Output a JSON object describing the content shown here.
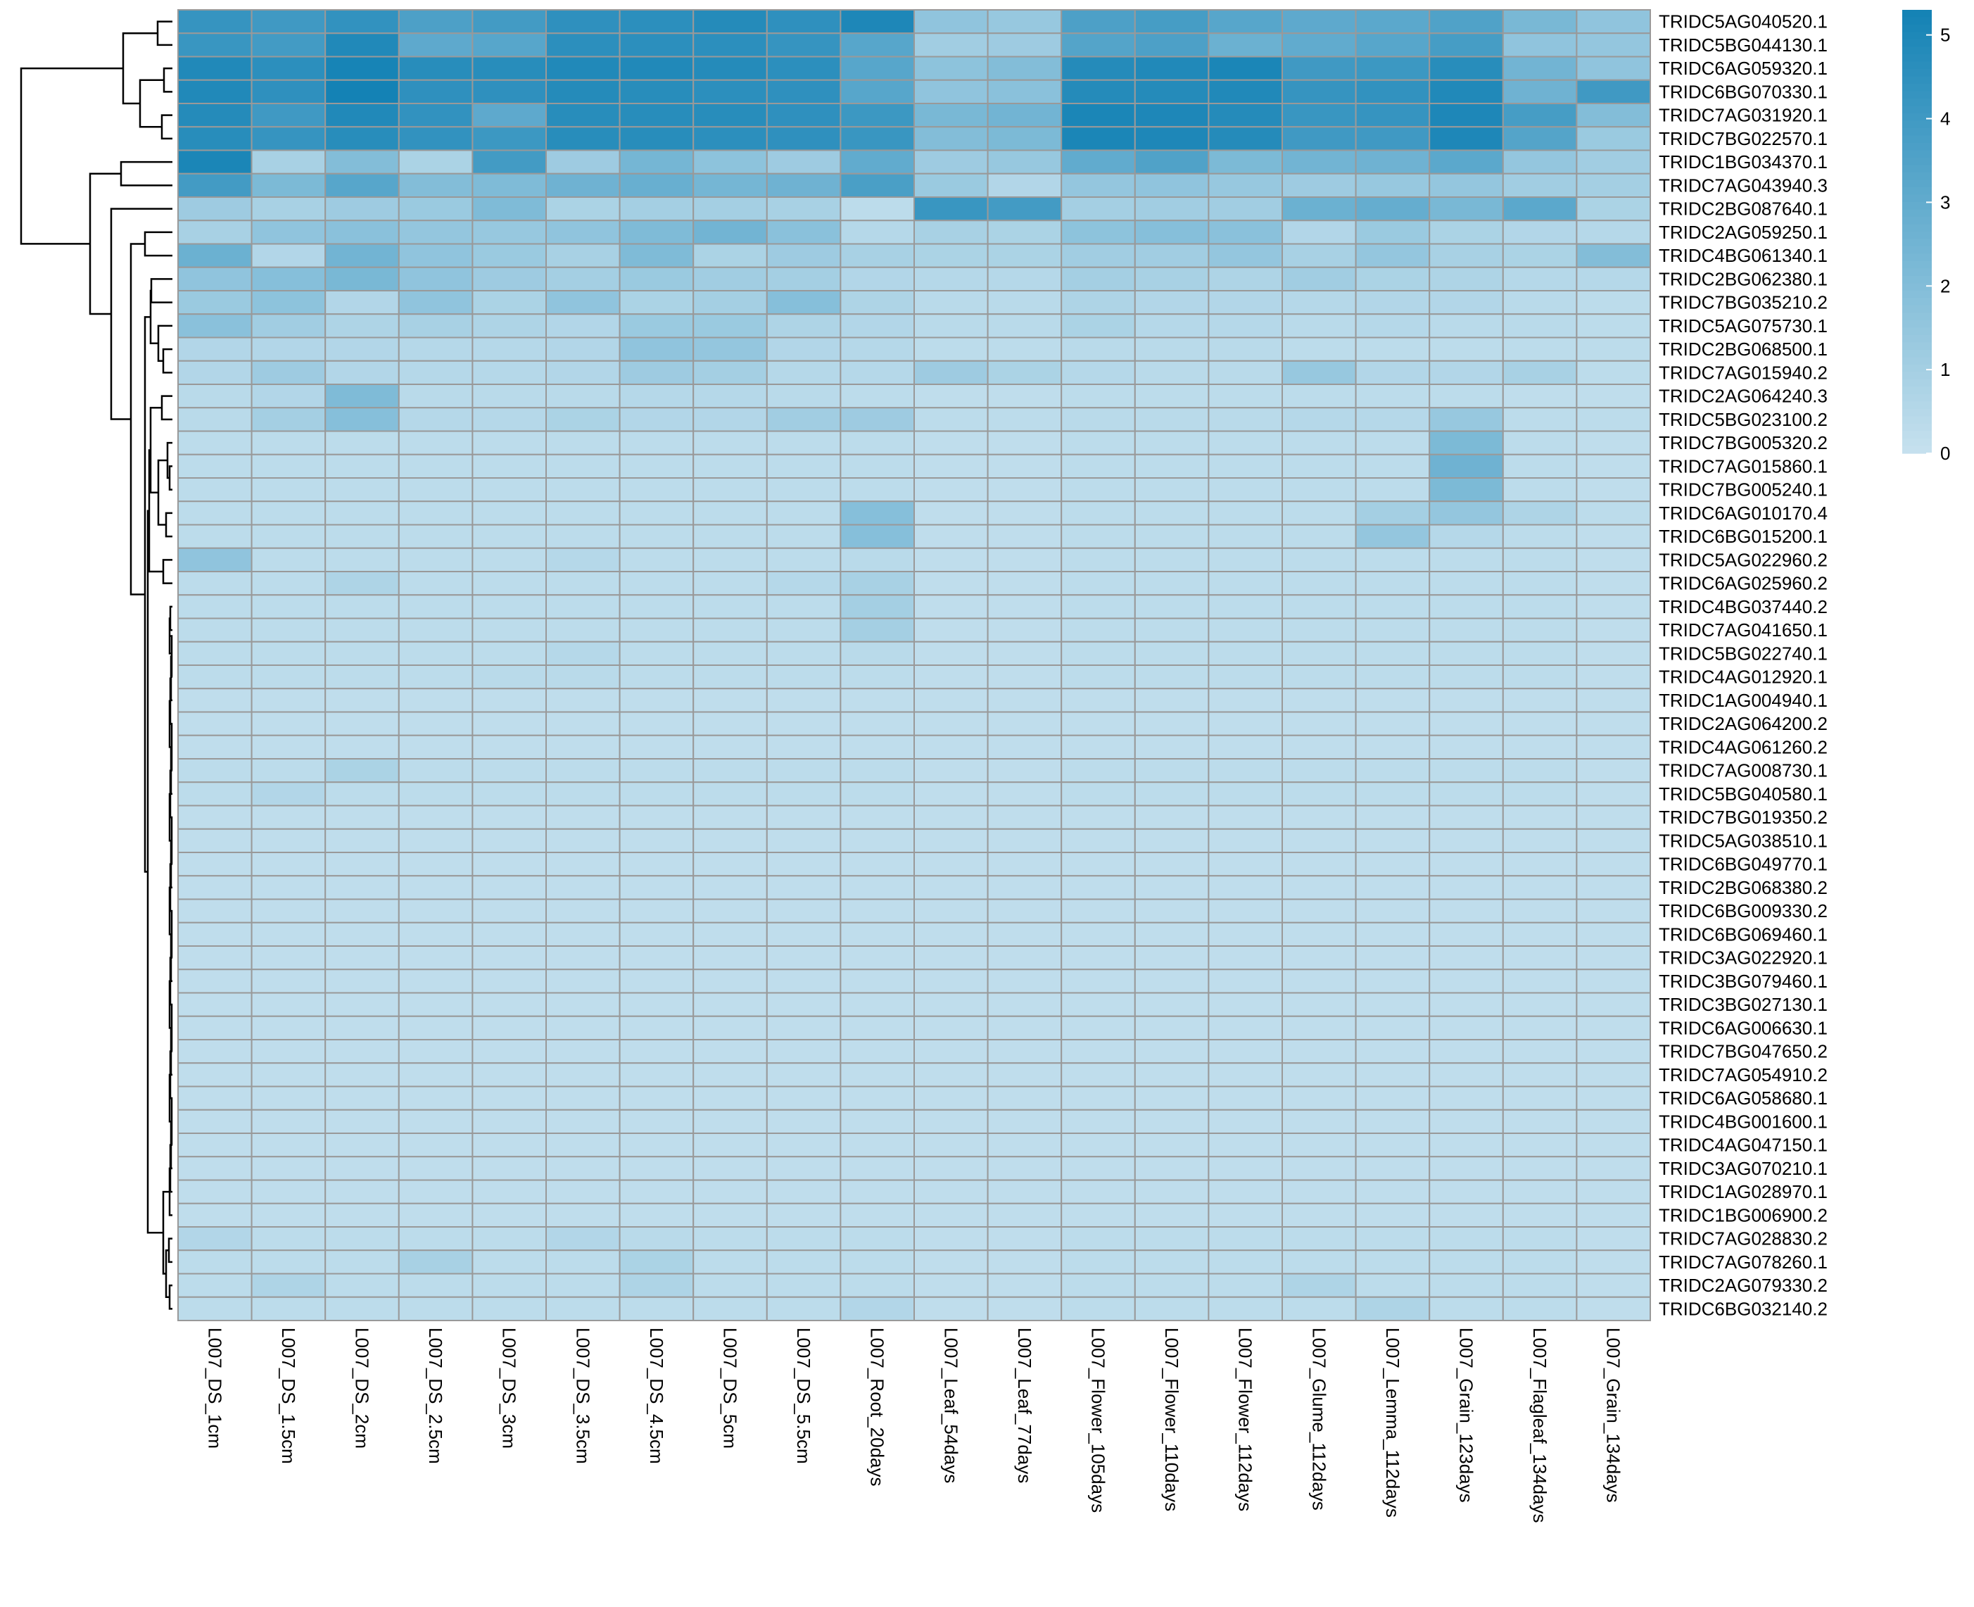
{
  "chart_data": {
    "type": "heatmap",
    "title": "",
    "columns": [
      "L007_DS_1cm",
      "L007_DS_1.5cm",
      "L007_DS_2cm",
      "L007_DS_2.5cm",
      "L007_DS_3cm",
      "L007_DS_3.5cm",
      "L007_DS_4.5cm",
      "L007_DS_5cm",
      "L007_DS_5.5cm",
      "L007_Root_20days",
      "L007_Leaf_54days",
      "L007_Leaf_77days",
      "L007_Flower_105days",
      "L007_Flower_110days",
      "L007_Flower_112days",
      "L007_Glume_112days",
      "L007_Lemma_112days",
      "L007_Grain_123days",
      "L007_Flagleaf_134days",
      "L007_Grain_134days"
    ],
    "rows": [
      "TRIDC5AG040520.1",
      "TRIDC5BG044130.1",
      "TRIDC6AG059320.1",
      "TRIDC6BG070330.1",
      "TRIDC7AG031920.1",
      "TRIDC7BG022570.1",
      "TRIDC1BG034370.1",
      "TRIDC7AG043940.3",
      "TRIDC2BG087640.1",
      "TRIDC2AG059250.1",
      "TRIDC4BG061340.1",
      "TRIDC2BG062380.1",
      "TRIDC7BG035210.2",
      "TRIDC5AG075730.1",
      "TRIDC2BG068500.1",
      "TRIDC7AG015940.2",
      "TRIDC2AG064240.3",
      "TRIDC5BG023100.2",
      "TRIDC7BG005320.2",
      "TRIDC7AG015860.1",
      "TRIDC7BG005240.1",
      "TRIDC6AG010170.4",
      "TRIDC6BG015200.1",
      "TRIDC5AG022960.2",
      "TRIDC6AG025960.2",
      "TRIDC4BG037440.2",
      "TRIDC7AG041650.1",
      "TRIDC5BG022740.1",
      "TRIDC4AG012920.1",
      "TRIDC1AG004940.1",
      "TRIDC2AG064200.2",
      "TRIDC4AG061260.2",
      "TRIDC7AG008730.1",
      "TRIDC5BG040580.1",
      "TRIDC7BG019350.2",
      "TRIDC5AG038510.1",
      "TRIDC6BG049770.1",
      "TRIDC2BG068380.2",
      "TRIDC6BG009330.2",
      "TRIDC6BG069460.1",
      "TRIDC3AG022920.1",
      "TRIDC3BG079460.1",
      "TRIDC3BG027130.1",
      "TRIDC6AG006630.1",
      "TRIDC7BG047650.2",
      "TRIDC7AG054910.2",
      "TRIDC6AG058680.1",
      "TRIDC4BG001600.1",
      "TRIDC4AG047150.1",
      "TRIDC3AG070210.1",
      "TRIDC1AG028970.1",
      "TRIDC1BG006900.2",
      "TRIDC7AG028830.2",
      "TRIDC7AG078260.1",
      "TRIDC2AG079330.2",
      "TRIDC6BG032140.2"
    ],
    "values": [
      [
        4.3,
        4.0,
        4.4,
        3.6,
        3.9,
        4.5,
        4.6,
        4.8,
        4.5,
        5.0,
        1.6,
        1.4,
        3.6,
        3.8,
        3.3,
        3.1,
        3.2,
        3.5,
        2.3,
        1.6
      ],
      [
        4.2,
        3.9,
        4.9,
        3.1,
        3.3,
        4.6,
        4.6,
        4.6,
        4.3,
        3.3,
        1.1,
        1.2,
        3.4,
        3.6,
        2.7,
        3.0,
        3.3,
        3.8,
        1.6,
        1.5
      ],
      [
        4.9,
        4.6,
        5.2,
        4.7,
        4.7,
        4.9,
        4.9,
        4.8,
        4.6,
        3.3,
        1.7,
        2.0,
        4.8,
        4.9,
        5.1,
        4.0,
        4.1,
        4.7,
        2.5,
        1.6
      ],
      [
        4.9,
        4.5,
        5.3,
        4.5,
        4.5,
        4.8,
        4.7,
        4.6,
        4.5,
        3.3,
        1.6,
        1.8,
        4.8,
        4.8,
        4.9,
        4.3,
        4.4,
        4.9,
        2.6,
        4.0
      ],
      [
        4.8,
        4.0,
        4.9,
        4.4,
        3.1,
        4.7,
        4.7,
        4.7,
        4.5,
        4.1,
        2.3,
        2.5,
        5.1,
        5.0,
        4.8,
        4.2,
        4.3,
        5.0,
        3.8,
        2.0
      ],
      [
        4.7,
        4.3,
        4.7,
        4.4,
        4.1,
        4.7,
        4.7,
        4.6,
        4.5,
        4.2,
        2.0,
        2.2,
        5.1,
        5.0,
        4.8,
        4.0,
        4.0,
        5.0,
        3.4,
        1.3
      ],
      [
        5.1,
        0.9,
        2.0,
        0.8,
        3.9,
        1.2,
        2.4,
        1.7,
        1.2,
        3.0,
        1.2,
        1.4,
        3.0,
        3.5,
        2.2,
        2.5,
        2.6,
        3.2,
        1.5,
        1.1
      ],
      [
        3.9,
        2.2,
        3.3,
        2.0,
        2.1,
        2.6,
        2.8,
        2.4,
        2.6,
        3.7,
        1.3,
        0.6,
        1.5,
        1.6,
        1.4,
        1.2,
        1.4,
        1.5,
        1.1,
        1.0
      ],
      [
        1.2,
        0.9,
        1.2,
        1.3,
        2.1,
        0.8,
        1.0,
        1.0,
        0.9,
        0.3,
        4.2,
        3.9,
        1.0,
        1.1,
        1.1,
        2.7,
        2.9,
        2.3,
        3.2,
        0.8
      ],
      [
        0.9,
        1.6,
        1.8,
        1.5,
        1.4,
        1.6,
        2.1,
        2.5,
        1.8,
        0.5,
        0.9,
        0.8,
        1.7,
        1.9,
        1.8,
        0.6,
        1.3,
        0.8,
        0.6,
        0.5
      ],
      [
        2.7,
        0.6,
        2.5,
        1.6,
        1.3,
        0.9,
        2.1,
        0.8,
        1.2,
        0.9,
        0.8,
        0.8,
        1.1,
        1.1,
        1.5,
        0.9,
        1.5,
        0.9,
        0.8,
        2.0
      ],
      [
        1.6,
        1.9,
        2.3,
        1.6,
        1.2,
        1.0,
        1.3,
        1.1,
        1.0,
        0.6,
        0.5,
        0.5,
        1.0,
        0.9,
        0.7,
        1.1,
        0.8,
        0.7,
        0.5,
        0.5
      ],
      [
        1.3,
        1.7,
        0.6,
        1.6,
        0.8,
        1.6,
        0.8,
        1.0,
        1.9,
        0.7,
        0.4,
        0.4,
        0.7,
        0.6,
        0.6,
        0.5,
        0.6,
        0.6,
        0.4,
        0.3
      ],
      [
        1.8,
        1.1,
        0.7,
        0.9,
        0.7,
        0.6,
        1.3,
        1.3,
        0.7,
        0.6,
        0.4,
        0.4,
        0.8,
        0.5,
        0.5,
        0.4,
        0.5,
        0.4,
        0.4,
        0.3
      ],
      [
        0.6,
        0.6,
        0.6,
        0.5,
        0.5,
        0.6,
        1.6,
        1.5,
        0.6,
        0.5,
        0.3,
        0.3,
        0.4,
        0.4,
        0.4,
        0.3,
        0.3,
        0.3,
        0.3,
        0.3
      ],
      [
        0.6,
        1.2,
        0.6,
        0.5,
        0.5,
        0.6,
        1.2,
        1.0,
        0.5,
        0.5,
        1.2,
        0.8,
        0.5,
        0.4,
        0.4,
        1.4,
        0.6,
        0.6,
        0.9,
        0.3
      ],
      [
        0.4,
        0.6,
        2.1,
        0.4,
        0.4,
        0.4,
        0.5,
        0.5,
        0.4,
        0.3,
        0.2,
        0.2,
        0.3,
        0.3,
        0.3,
        0.3,
        0.3,
        0.3,
        0.2,
        0.2
      ],
      [
        0.4,
        1.0,
        1.9,
        0.5,
        0.5,
        0.8,
        0.6,
        0.6,
        1.1,
        1.2,
        0.3,
        0.3,
        0.4,
        0.4,
        0.4,
        0.5,
        0.5,
        1.4,
        0.3,
        0.3
      ],
      [
        0.3,
        0.3,
        0.3,
        0.3,
        0.3,
        0.3,
        0.3,
        0.3,
        0.3,
        0.3,
        0.2,
        0.2,
        0.3,
        0.3,
        0.3,
        0.3,
        0.3,
        2.2,
        0.3,
        0.2
      ],
      [
        0.3,
        0.3,
        0.3,
        0.3,
        0.3,
        0.3,
        0.3,
        0.3,
        0.3,
        0.3,
        0.2,
        0.2,
        0.3,
        0.3,
        0.3,
        0.3,
        0.3,
        2.6,
        0.3,
        0.2
      ],
      [
        0.3,
        0.3,
        0.3,
        0.3,
        0.3,
        0.3,
        0.3,
        0.3,
        0.3,
        0.3,
        0.2,
        0.2,
        0.3,
        0.3,
        0.3,
        0.3,
        0.3,
        2.2,
        0.3,
        0.2
      ],
      [
        0.3,
        0.3,
        0.3,
        0.3,
        0.3,
        0.3,
        0.3,
        0.3,
        0.3,
        1.9,
        0.2,
        0.2,
        0.3,
        0.3,
        0.3,
        0.3,
        1.0,
        1.5,
        0.7,
        0.3
      ],
      [
        0.3,
        0.3,
        0.3,
        0.3,
        0.3,
        0.3,
        0.3,
        0.3,
        0.3,
        1.9,
        0.2,
        0.2,
        0.3,
        0.3,
        0.3,
        0.3,
        1.5,
        0.5,
        0.3,
        0.2
      ],
      [
        1.6,
        0.3,
        0.3,
        0.3,
        0.3,
        0.5,
        0.3,
        0.3,
        0.3,
        0.4,
        0.2,
        0.2,
        0.3,
        0.3,
        0.3,
        0.3,
        0.3,
        0.3,
        0.3,
        0.2
      ],
      [
        0.3,
        0.3,
        0.7,
        0.3,
        0.3,
        0.3,
        0.3,
        0.3,
        0.5,
        0.9,
        0.2,
        0.2,
        0.3,
        0.3,
        0.3,
        0.3,
        0.3,
        0.3,
        0.3,
        0.2
      ],
      [
        0.3,
        0.3,
        0.3,
        0.3,
        0.3,
        0.3,
        0.3,
        0.3,
        0.3,
        1.0,
        0.2,
        0.2,
        0.3,
        0.3,
        0.3,
        0.3,
        0.3,
        0.3,
        0.3,
        0.2
      ],
      [
        0.3,
        0.3,
        0.3,
        0.3,
        0.3,
        0.3,
        0.3,
        0.3,
        0.3,
        1.0,
        0.2,
        0.2,
        0.3,
        0.3,
        0.3,
        0.3,
        0.3,
        0.3,
        0.3,
        0.2
      ],
      [
        0.3,
        0.3,
        0.3,
        0.3,
        0.3,
        0.5,
        0.3,
        0.3,
        0.3,
        0.4,
        0.2,
        0.2,
        0.3,
        0.3,
        0.3,
        0.3,
        0.3,
        0.3,
        0.3,
        0.2
      ],
      [
        0.3,
        0.3,
        0.3,
        0.3,
        0.4,
        0.4,
        0.3,
        0.3,
        0.3,
        0.3,
        0.2,
        0.2,
        0.3,
        0.3,
        0.3,
        0.3,
        0.3,
        0.3,
        0.3,
        0.2
      ],
      [
        0.2,
        0.2,
        0.2,
        0.2,
        0.2,
        0.2,
        0.2,
        0.2,
        0.2,
        0.2,
        0.2,
        0.2,
        0.2,
        0.2,
        0.2,
        0.2,
        0.2,
        0.2,
        0.2,
        0.2
      ],
      [
        0.2,
        0.2,
        0.2,
        0.2,
        0.2,
        0.2,
        0.2,
        0.2,
        0.2,
        0.2,
        0.2,
        0.2,
        0.2,
        0.2,
        0.2,
        0.2,
        0.2,
        0.2,
        0.2,
        0.2
      ],
      [
        0.2,
        0.2,
        0.2,
        0.2,
        0.2,
        0.2,
        0.2,
        0.2,
        0.2,
        0.2,
        0.2,
        0.2,
        0.2,
        0.2,
        0.2,
        0.2,
        0.2,
        0.2,
        0.2,
        0.2
      ],
      [
        0.3,
        0.3,
        0.8,
        0.3,
        0.3,
        0.3,
        0.3,
        0.3,
        0.3,
        0.3,
        0.2,
        0.2,
        0.3,
        0.3,
        0.3,
        0.3,
        0.3,
        0.3,
        0.3,
        0.2
      ],
      [
        0.3,
        0.6,
        0.3,
        0.3,
        0.3,
        0.3,
        0.3,
        0.3,
        0.3,
        0.3,
        0.2,
        0.2,
        0.3,
        0.3,
        0.3,
        0.3,
        0.3,
        0.3,
        0.3,
        0.2
      ],
      [
        0.2,
        0.2,
        0.2,
        0.2,
        0.2,
        0.2,
        0.2,
        0.2,
        0.2,
        0.2,
        0.2,
        0.2,
        0.2,
        0.2,
        0.2,
        0.2,
        0.2,
        0.2,
        0.2,
        0.2
      ],
      [
        0.2,
        0.2,
        0.2,
        0.2,
        0.2,
        0.2,
        0.2,
        0.2,
        0.2,
        0.2,
        0.2,
        0.2,
        0.2,
        0.2,
        0.2,
        0.2,
        0.2,
        0.2,
        0.2,
        0.2
      ],
      [
        0.2,
        0.2,
        0.2,
        0.2,
        0.2,
        0.2,
        0.2,
        0.2,
        0.2,
        0.2,
        0.2,
        0.2,
        0.2,
        0.2,
        0.2,
        0.2,
        0.2,
        0.2,
        0.2,
        0.2
      ],
      [
        0.2,
        0.2,
        0.2,
        0.2,
        0.2,
        0.2,
        0.2,
        0.2,
        0.2,
        0.2,
        0.2,
        0.2,
        0.2,
        0.2,
        0.2,
        0.2,
        0.2,
        0.2,
        0.2,
        0.2
      ],
      [
        0.2,
        0.2,
        0.2,
        0.2,
        0.2,
        0.2,
        0.2,
        0.2,
        0.2,
        0.2,
        0.2,
        0.2,
        0.2,
        0.2,
        0.2,
        0.2,
        0.2,
        0.2,
        0.2,
        0.2
      ],
      [
        0.2,
        0.2,
        0.2,
        0.2,
        0.2,
        0.2,
        0.2,
        0.2,
        0.2,
        0.2,
        0.2,
        0.2,
        0.2,
        0.2,
        0.2,
        0.2,
        0.2,
        0.2,
        0.2,
        0.2
      ],
      [
        0.2,
        0.2,
        0.2,
        0.2,
        0.2,
        0.2,
        0.2,
        0.2,
        0.2,
        0.2,
        0.2,
        0.2,
        0.2,
        0.2,
        0.2,
        0.2,
        0.2,
        0.2,
        0.2,
        0.2
      ],
      [
        0.2,
        0.2,
        0.2,
        0.2,
        0.2,
        0.2,
        0.2,
        0.2,
        0.2,
        0.2,
        0.2,
        0.2,
        0.2,
        0.2,
        0.2,
        0.2,
        0.2,
        0.2,
        0.2,
        0.2
      ],
      [
        0.2,
        0.2,
        0.2,
        0.2,
        0.2,
        0.2,
        0.2,
        0.2,
        0.2,
        0.2,
        0.2,
        0.2,
        0.2,
        0.2,
        0.2,
        0.2,
        0.2,
        0.2,
        0.2,
        0.2
      ],
      [
        0.2,
        0.2,
        0.2,
        0.2,
        0.2,
        0.2,
        0.2,
        0.2,
        0.2,
        0.2,
        0.2,
        0.2,
        0.2,
        0.2,
        0.2,
        0.2,
        0.2,
        0.2,
        0.2,
        0.2
      ],
      [
        0.2,
        0.2,
        0.2,
        0.2,
        0.2,
        0.2,
        0.2,
        0.2,
        0.2,
        0.2,
        0.2,
        0.2,
        0.2,
        0.2,
        0.2,
        0.2,
        0.2,
        0.2,
        0.2,
        0.2
      ],
      [
        0.2,
        0.2,
        0.2,
        0.2,
        0.2,
        0.2,
        0.2,
        0.2,
        0.2,
        0.2,
        0.2,
        0.2,
        0.2,
        0.2,
        0.2,
        0.2,
        0.2,
        0.2,
        0.2,
        0.2
      ],
      [
        0.2,
        0.2,
        0.2,
        0.2,
        0.2,
        0.2,
        0.2,
        0.2,
        0.2,
        0.2,
        0.2,
        0.2,
        0.2,
        0.2,
        0.2,
        0.2,
        0.2,
        0.2,
        0.2,
        0.2
      ],
      [
        0.2,
        0.2,
        0.2,
        0.2,
        0.2,
        0.2,
        0.2,
        0.2,
        0.2,
        0.2,
        0.2,
        0.2,
        0.2,
        0.2,
        0.2,
        0.2,
        0.2,
        0.2,
        0.2,
        0.2
      ],
      [
        0.2,
        0.2,
        0.2,
        0.2,
        0.2,
        0.2,
        0.2,
        0.2,
        0.2,
        0.2,
        0.2,
        0.2,
        0.2,
        0.2,
        0.2,
        0.2,
        0.2,
        0.2,
        0.2,
        0.2
      ],
      [
        0.2,
        0.2,
        0.2,
        0.2,
        0.2,
        0.2,
        0.2,
        0.2,
        0.2,
        0.2,
        0.2,
        0.2,
        0.2,
        0.2,
        0.2,
        0.2,
        0.2,
        0.2,
        0.2,
        0.2
      ],
      [
        0.2,
        0.2,
        0.2,
        0.2,
        0.2,
        0.2,
        0.2,
        0.2,
        0.2,
        0.2,
        0.2,
        0.2,
        0.2,
        0.2,
        0.2,
        0.2,
        0.2,
        0.2,
        0.2,
        0.2
      ],
      [
        0.2,
        0.2,
        0.2,
        0.2,
        0.2,
        0.2,
        0.2,
        0.2,
        0.2,
        0.2,
        0.2,
        0.2,
        0.2,
        0.2,
        0.2,
        0.2,
        0.2,
        0.2,
        0.2,
        0.2
      ],
      [
        0.6,
        0.3,
        0.3,
        0.3,
        0.3,
        0.6,
        0.4,
        0.3,
        0.3,
        0.3,
        0.2,
        0.2,
        0.3,
        0.3,
        0.3,
        0.3,
        0.3,
        0.3,
        0.3,
        0.2
      ],
      [
        0.3,
        0.3,
        0.3,
        0.9,
        0.3,
        0.3,
        0.8,
        0.3,
        0.3,
        0.3,
        0.2,
        0.2,
        0.3,
        0.3,
        0.3,
        0.3,
        0.3,
        0.3,
        0.3,
        0.2
      ],
      [
        0.3,
        0.7,
        0.3,
        0.3,
        0.3,
        0.3,
        0.7,
        0.3,
        0.3,
        0.3,
        0.2,
        0.2,
        0.3,
        0.3,
        0.3,
        0.7,
        0.3,
        0.3,
        0.3,
        0.2
      ],
      [
        0.3,
        0.3,
        0.3,
        0.3,
        0.3,
        0.3,
        0.3,
        0.3,
        0.3,
        0.6,
        0.2,
        0.2,
        0.3,
        0.3,
        0.3,
        0.3,
        0.7,
        0.3,
        0.3,
        0.2
      ]
    ],
    "legend": {
      "ticks": [
        0,
        1,
        2,
        3,
        4,
        5
      ],
      "range": [
        0,
        5.3
      ],
      "color_low": "#c6e1ee",
      "color_high": "#1482b5"
    },
    "colors": {
      "cell_border": "#999999",
      "dendrogram": "#000000"
    }
  }
}
